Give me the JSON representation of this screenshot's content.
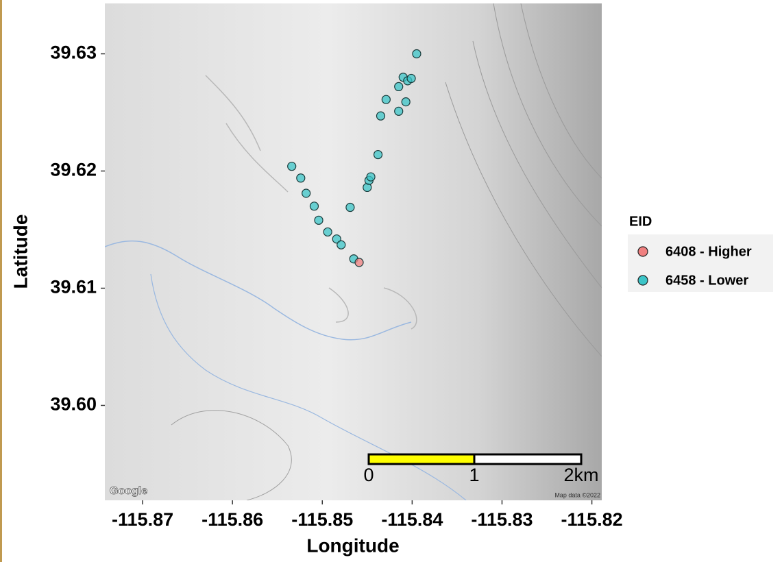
{
  "chart_data": {
    "type": "scatter",
    "x_label": "Longitude",
    "y_label": "Latitude",
    "xlim": [
      -115.8742,
      -115.8189
    ],
    "ylim": [
      39.5919,
      39.6343
    ],
    "xticks": [
      -115.87,
      -115.86,
      -115.85,
      -115.84,
      -115.83,
      -115.82
    ],
    "yticks": [
      {
        "value": 39.6,
        "label": "39.60"
      },
      39.61,
      39.62,
      39.63
    ],
    "legend_title": "EID",
    "legend_position": "right",
    "series": [
      {
        "name": "6408 - Higher",
        "color": "#f08080",
        "x": [
          -115.8459
        ],
        "values": [
          39.6122
        ]
      },
      {
        "name": "6458 - Lower",
        "color": "#3cc5c8",
        "x": [
          -115.8534,
          -115.8524,
          -115.8518,
          -115.8509,
          -115.8504,
          -115.8494,
          -115.8484,
          -115.8479,
          -115.8469,
          -115.8465,
          -115.845,
          -115.8448,
          -115.8446,
          -115.8438,
          -115.8435,
          -115.8429,
          -115.8415,
          -115.8415,
          -115.841,
          -115.8407,
          -115.8405,
          -115.8401,
          -115.8395
        ],
        "values": [
          39.6204,
          39.6194,
          39.6181,
          39.617,
          39.6158,
          39.6148,
          39.6142,
          39.6137,
          39.6169,
          39.6125,
          39.6186,
          39.6192,
          39.6195,
          39.6214,
          39.6247,
          39.6261,
          39.6251,
          39.6272,
          39.628,
          39.6259,
          39.6277,
          39.6279,
          39.63
        ]
      }
    ],
    "scale_bar": {
      "labels": [
        "0",
        "1",
        "2km"
      ]
    },
    "attribution": {
      "logo": "Google",
      "map_data": "Map data ©2022"
    }
  }
}
